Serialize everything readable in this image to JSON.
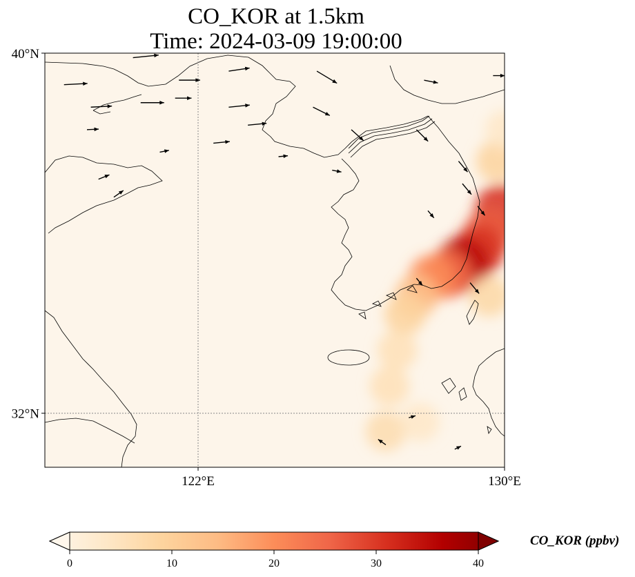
{
  "title": {
    "line1": "CO_KOR at 1.5km",
    "line2": "Time: 2024-03-09 19:00:00"
  },
  "map": {
    "lon_range": [
      118,
      130
    ],
    "lat_range": [
      30.8,
      40
    ],
    "lat_ticks": [
      {
        "value": 40,
        "label": "40°N"
      },
      {
        "value": 32,
        "label": "32°N"
      }
    ],
    "lon_ticks": [
      {
        "value": 122,
        "label": "122°E"
      },
      {
        "value": 130,
        "label": "130°E"
      }
    ],
    "gridlines": "dotted at 122°E and 32°N",
    "background_color": "#fdf5ea",
    "coastline_color": "#000000"
  },
  "colorbar": {
    "label": "CO_KOR (ppbv)",
    "ticks": [
      "0",
      "10",
      "20",
      "30",
      "40"
    ],
    "min": 0,
    "max": 40,
    "colormap": "OrRd",
    "stops": [
      "#fff7ec",
      "#fee8c8",
      "#fdd49e",
      "#fdbb84",
      "#fc8d59",
      "#ef6548",
      "#d7301f",
      "#b30000",
      "#7f0000"
    ],
    "extend": "both"
  },
  "chart_data": {
    "type": "heatmap",
    "variable": "CO_KOR",
    "units": "ppbv",
    "level": "1.5km",
    "time": "2024-03-09 19:00:00",
    "plume_points": [
      {
        "lon": 129.9,
        "lat": 36.5,
        "value": 30
      },
      {
        "lon": 129.6,
        "lat": 36.0,
        "value": 26
      },
      {
        "lon": 129.3,
        "lat": 35.6,
        "value": 30
      },
      {
        "lon": 128.9,
        "lat": 35.3,
        "value": 34
      },
      {
        "lon": 128.5,
        "lat": 35.1,
        "value": 24
      },
      {
        "lon": 128.1,
        "lat": 35.0,
        "value": 20
      },
      {
        "lon": 127.7,
        "lat": 34.6,
        "value": 14
      },
      {
        "lon": 127.4,
        "lat": 34.2,
        "value": 10
      },
      {
        "lon": 127.2,
        "lat": 33.4,
        "value": 7
      },
      {
        "lon": 127.0,
        "lat": 32.6,
        "value": 7
      },
      {
        "lon": 126.9,
        "lat": 31.6,
        "value": 8
      },
      {
        "lon": 127.8,
        "lat": 31.8,
        "value": 5
      },
      {
        "lon": 129.8,
        "lat": 37.6,
        "value": 10
      },
      {
        "lon": 130.0,
        "lat": 38.3,
        "value": 5
      },
      {
        "lon": 129.6,
        "lat": 34.6,
        "value": 9
      }
    ],
    "wind_vectors": [
      {
        "lon": 118.5,
        "lat": 39.3,
        "u": 1,
        "v": 0.05,
        "speed": 1.0
      },
      {
        "lon": 119.2,
        "lat": 38.8,
        "u": 1,
        "v": 0.05,
        "speed": 0.9
      },
      {
        "lon": 120.5,
        "lat": 38.9,
        "u": 1,
        "v": 0.0,
        "speed": 1.0
      },
      {
        "lon": 120.3,
        "lat": 39.9,
        "u": 1,
        "v": 0.1,
        "speed": 1.1
      },
      {
        "lon": 121.5,
        "lat": 39.4,
        "u": 1,
        "v": 0.0,
        "speed": 0.9
      },
      {
        "lon": 122.8,
        "lat": 39.6,
        "u": 1,
        "v": 0.15,
        "speed": 0.9
      },
      {
        "lon": 122.8,
        "lat": 38.8,
        "u": 1,
        "v": 0.1,
        "speed": 0.9
      },
      {
        "lon": 123.3,
        "lat": 38.4,
        "u": 1,
        "v": 0.1,
        "speed": 0.8
      },
      {
        "lon": 122.4,
        "lat": 38.0,
        "u": 1,
        "v": 0.1,
        "speed": 0.7
      },
      {
        "lon": 119.1,
        "lat": 38.3,
        "u": 1,
        "v": 0.05,
        "speed": 0.5
      },
      {
        "lon": 121.4,
        "lat": 39.0,
        "u": 1,
        "v": 0.0,
        "speed": 0.7
      },
      {
        "lon": 125.1,
        "lat": 39.6,
        "u": 1,
        "v": -0.6,
        "speed": 1.0
      },
      {
        "lon": 125.0,
        "lat": 38.8,
        "u": 1,
        "v": -0.5,
        "speed": 0.8
      },
      {
        "lon": 126.0,
        "lat": 38.3,
        "u": 1,
        "v": -0.9,
        "speed": 0.7
      },
      {
        "lon": 127.9,
        "lat": 39.4,
        "u": 1,
        "v": -0.2,
        "speed": 0.6
      },
      {
        "lon": 129.7,
        "lat": 39.5,
        "u": 1,
        "v": 0.0,
        "speed": 0.5
      },
      {
        "lon": 127.7,
        "lat": 38.3,
        "u": 1,
        "v": -1.0,
        "speed": 0.7
      },
      {
        "lon": 128.8,
        "lat": 37.6,
        "u": 1,
        "v": -1.2,
        "speed": 0.6
      },
      {
        "lon": 128.9,
        "lat": 37.1,
        "u": 1,
        "v": -1.2,
        "speed": 0.6
      },
      {
        "lon": 129.3,
        "lat": 36.6,
        "u": 1,
        "v": -1.3,
        "speed": 0.5
      },
      {
        "lon": 129.1,
        "lat": 34.9,
        "u": 1,
        "v": -1.2,
        "speed": 0.6
      },
      {
        "lon": 127.7,
        "lat": 35.0,
        "u": 1,
        "v": -1.2,
        "speed": 0.4
      },
      {
        "lon": 128.0,
        "lat": 36.5,
        "u": 1,
        "v": -1.2,
        "speed": 0.4
      },
      {
        "lon": 119.4,
        "lat": 37.2,
        "u": 1,
        "v": 0.4,
        "speed": 0.5
      },
      {
        "lon": 119.8,
        "lat": 36.8,
        "u": 1,
        "v": 0.7,
        "speed": 0.5
      },
      {
        "lon": 125.5,
        "lat": 37.4,
        "u": 1,
        "v": -0.2,
        "speed": 0.4
      },
      {
        "lon": 124.1,
        "lat": 37.7,
        "u": 1,
        "v": 0.1,
        "speed": 0.4
      },
      {
        "lon": 121.0,
        "lat": 37.8,
        "u": 1,
        "v": 0.2,
        "speed": 0.4
      },
      {
        "lon": 126.9,
        "lat": 31.3,
        "u": -1,
        "v": 0.7,
        "speed": 0.4
      },
      {
        "lon": 127.5,
        "lat": 31.9,
        "u": 1,
        "v": 0.3,
        "speed": 0.3
      },
      {
        "lon": 128.7,
        "lat": 31.2,
        "u": 1,
        "v": 0.5,
        "speed": 0.3
      }
    ]
  }
}
